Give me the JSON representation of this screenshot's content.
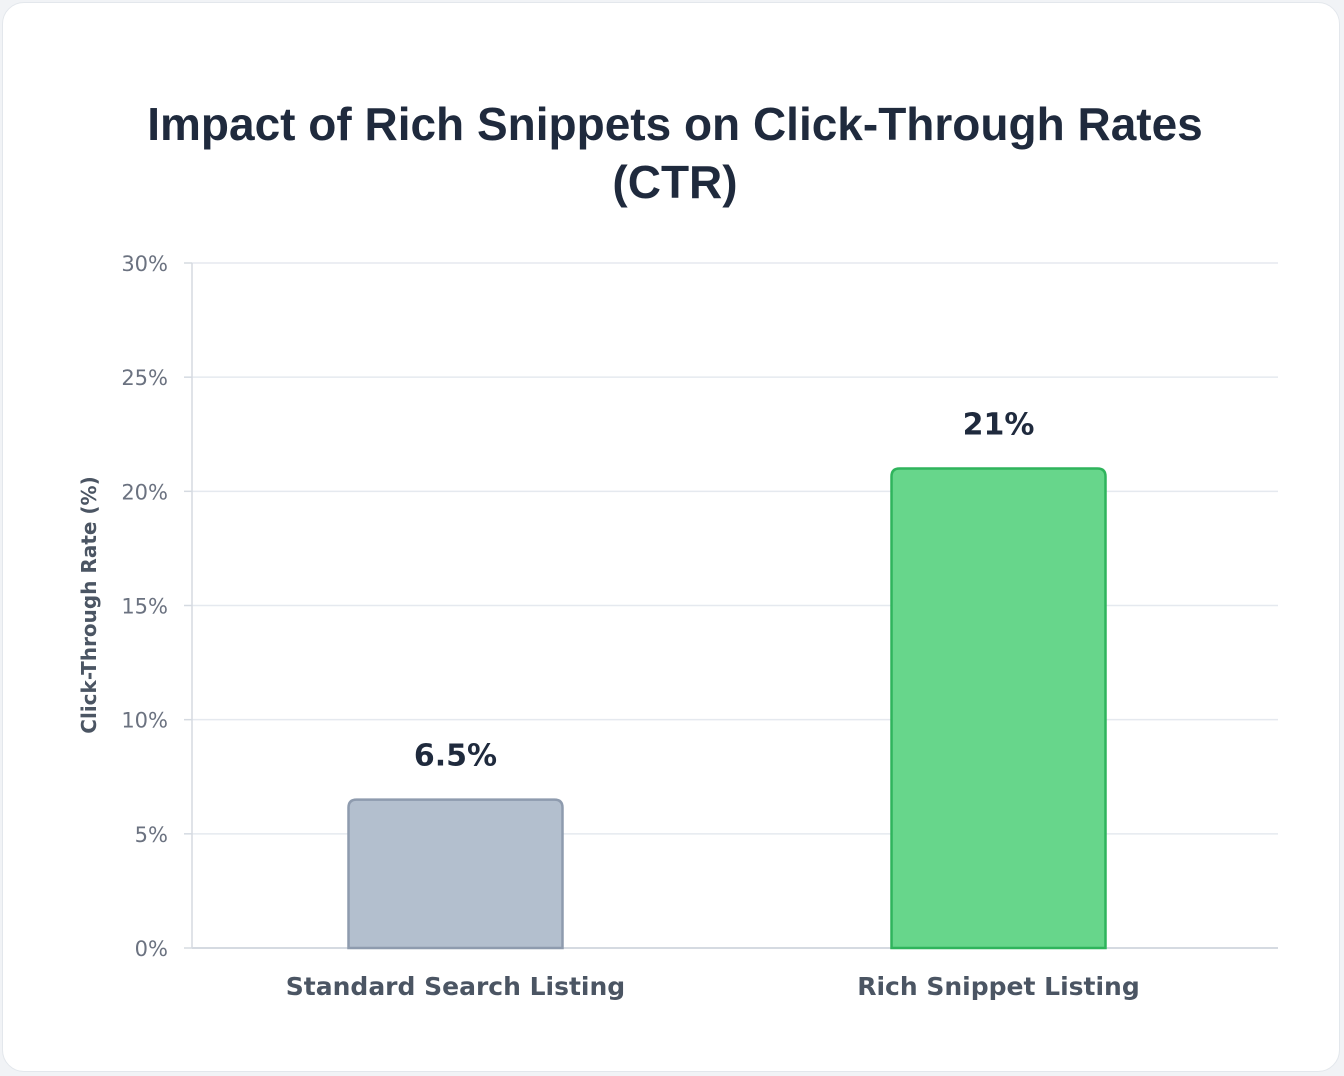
{
  "chart_data": {
    "type": "bar",
    "title": "Impact of Rich Snippets on Click-Through Rates (CTR)",
    "categories": [
      "Standard Search Listing",
      "Rich Snippet Listing"
    ],
    "values": [
      6.5,
      21
    ],
    "value_labels": [
      "6.5%",
      "21%"
    ],
    "ylabel": "Click-Through Rate (%)",
    "ylim": [
      0,
      30
    ],
    "yticks": [
      0,
      5,
      10,
      15,
      20,
      25,
      30
    ],
    "ytick_labels": [
      "0%",
      "5%",
      "10%",
      "15%",
      "20%",
      "25%",
      "30%"
    ],
    "grid": true,
    "colors": {
      "bar_fill": [
        "#b3bfce",
        "#67d68b"
      ],
      "bar_stroke": [
        "#8e9bae",
        "#2fb45c"
      ],
      "grid": "#e5e9ef",
      "axis": "#d5dae1"
    }
  }
}
